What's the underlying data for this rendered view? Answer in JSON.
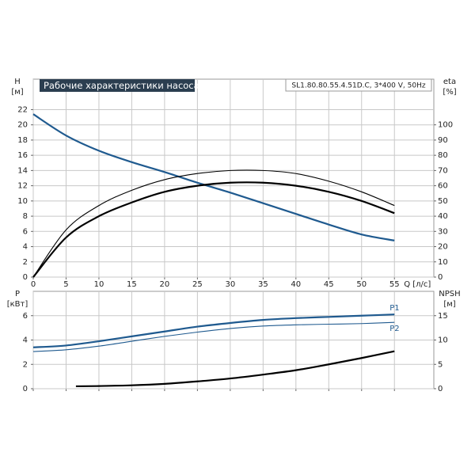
{
  "chart_data": [
    {
      "type": "line",
      "title": "Рабочие характеристики насоса",
      "subtitle": "SL1.80.80.55.4.51D.C, 3*400 V, 50Hz",
      "y_label": "H",
      "y_unit": "[м]",
      "y2_label": "eta",
      "y2_unit": "[%]",
      "x_label": "Q [л/с]",
      "x": [
        0,
        5,
        10,
        15,
        20,
        25,
        30,
        35,
        40,
        45,
        50,
        55
      ],
      "xlim": [
        0,
        61
      ],
      "xticks": [
        0,
        5,
        10,
        15,
        20,
        25,
        30,
        35,
        40,
        45,
        50,
        55
      ],
      "ylim": [
        0,
        26
      ],
      "yticks": [
        0,
        2,
        4,
        6,
        8,
        10,
        12,
        14,
        16,
        18,
        20,
        22
      ],
      "y2lim": [
        0,
        130
      ],
      "y2ticks": [
        0,
        10,
        20,
        30,
        40,
        50,
        60,
        70,
        80,
        90,
        100
      ],
      "grid": true,
      "series": [
        {
          "color": "#1f5a8f",
          "values": [
            21.4,
            18.6,
            16.6,
            15.1,
            13.8,
            12.4,
            11.1,
            9.7,
            8.3,
            6.9,
            5.6,
            4.8
          ]
        },
        {
          "color": "#000000",
          "axis": "y2",
          "values": [
            0,
            31,
            47,
            57,
            64,
            68,
            70,
            70,
            68,
            63,
            56,
            47
          ]
        },
        {
          "color": "#000000",
          "axis": "y2",
          "values": [
            0,
            26,
            40,
            49,
            56,
            60,
            62,
            62,
            60,
            56,
            50,
            42
          ]
        }
      ]
    },
    {
      "type": "line",
      "y_label": "P",
      "y_unit": "[кВт]",
      "y2_label": "NPSH",
      "y2_unit": "[м]",
      "x": [
        0,
        5,
        10,
        15,
        20,
        25,
        30,
        35,
        40,
        45,
        50,
        55
      ],
      "xlim": [
        0,
        61
      ],
      "xticks": [
        0,
        5,
        10,
        15,
        20,
        25,
        30,
        35,
        40,
        45,
        50,
        55
      ],
      "ylim": [
        0,
        8
      ],
      "yticks": [
        0,
        2,
        4,
        6
      ],
      "y2lim": [
        0,
        20
      ],
      "y2ticks": [
        0,
        5,
        10,
        15
      ],
      "grid": true,
      "series": [
        {
          "name": "P1",
          "color": "#1f5a8f",
          "values": [
            3.4,
            3.55,
            3.9,
            4.3,
            4.7,
            5.1,
            5.4,
            5.65,
            5.8,
            5.9,
            6.0,
            6.1
          ]
        },
        {
          "name": "P2",
          "color": "#1f5a8f",
          "values": [
            3.05,
            3.2,
            3.5,
            3.9,
            4.3,
            4.65,
            4.95,
            5.15,
            5.25,
            5.3,
            5.35,
            5.45
          ]
        },
        {
          "color": "#000000",
          "axis": "y2",
          "x": [
            6.5,
            10,
            15,
            20,
            25,
            30,
            35,
            40,
            45,
            50,
            55
          ],
          "values": [
            0.5,
            0.55,
            0.7,
            1.0,
            1.5,
            2.1,
            2.9,
            3.8,
            5.0,
            6.3,
            7.7
          ]
        }
      ]
    }
  ]
}
